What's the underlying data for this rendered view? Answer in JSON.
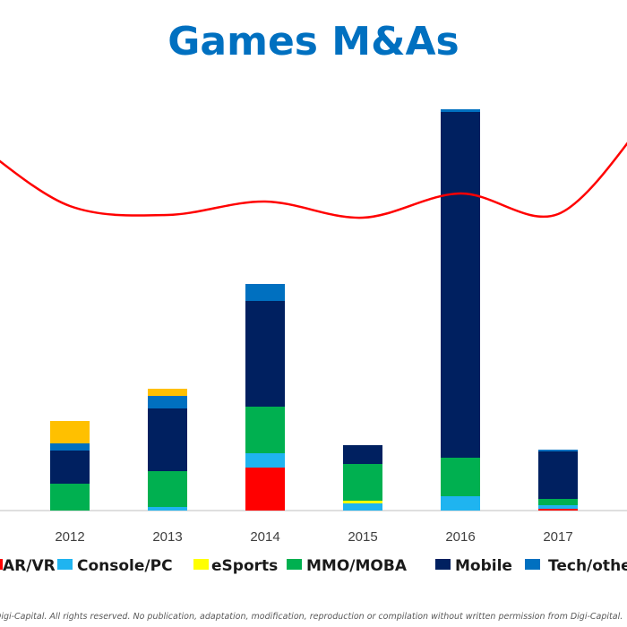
{
  "chart_data": {
    "type": "bar",
    "stacked": true,
    "title": "Games M&As",
    "categories": [
      "2012",
      "2013",
      "2014",
      "2015",
      "2016",
      "2017"
    ],
    "series": [
      {
        "name": "AR/VR",
        "color": "#ff0000",
        "values": [
          0,
          0,
          48,
          0,
          0,
          2
        ]
      },
      {
        "name": "Console/PC",
        "color": "#1fb4f0",
        "values": [
          0,
          4,
          16,
          8,
          16,
          4
        ]
      },
      {
        "name": "eSports",
        "color": "#ffff00",
        "values": [
          0,
          0,
          0,
          3,
          0,
          0
        ]
      },
      {
        "name": "MMO/MOBA",
        "color": "#00b050",
        "values": [
          30,
          40,
          52,
          41,
          43,
          7
        ]
      },
      {
        "name": "Mobile",
        "color": "#002060",
        "values": [
          37,
          70,
          118,
          21,
          386,
          53
        ]
      },
      {
        "name": "Tech/other",
        "color": "#0070c0",
        "values": [
          8,
          14,
          19,
          0,
          3,
          2
        ]
      },
      {
        "name": "",
        "color": "#ffc000",
        "values": [
          25,
          8,
          0,
          0,
          0,
          0
        ]
      }
    ],
    "line": {
      "color": "#ff0000",
      "values": [
        340,
        330,
        345,
        327,
        354,
        331
      ],
      "edge_values": [
        405,
        435
      ]
    },
    "ylim": [
      0,
      450
    ],
    "grid": false,
    "legend_position": "bottom",
    "footer": "Digi-Capital. All rights reserved. No publication, adaptation, modification, reproduction or compilation without written permission from Digi-Capital."
  }
}
